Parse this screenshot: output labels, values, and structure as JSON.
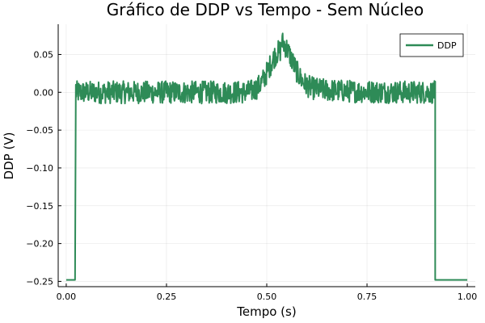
{
  "chart_data": {
    "type": "line",
    "title": "Gráfico de DDP vs Tempo - Sem Núcleo",
    "xlabel": "Tempo (s)",
    "ylabel": "DDP (V)",
    "xlim": [
      -0.02,
      1.02
    ],
    "ylim": [
      -0.257,
      0.09
    ],
    "xticks": [
      0.0,
      0.25,
      0.5,
      0.75,
      1.0
    ],
    "xtick_labels": [
      "0.00",
      "0.25",
      "0.50",
      "0.75",
      "1.00"
    ],
    "yticks": [
      0.05,
      0.0,
      -0.05,
      -0.1,
      -0.15,
      -0.2,
      -0.25
    ],
    "ytick_labels": [
      "0.05",
      "0.00",
      "−0.05",
      "−0.10",
      "−0.15",
      "−0.20",
      "−0.25"
    ],
    "grid": true,
    "legend_position": "top-right",
    "colors": {
      "series": "#2E8B57"
    },
    "series": [
      {
        "name": "DDP",
        "description_points": {
          "baseline_before": [
            [
              0.0,
              -0.248
            ],
            [
              0.022,
              -0.248
            ]
          ],
          "jump_up": [
            [
              0.024,
              0.0
            ]
          ],
          "noisy_plateau_start_end": [
            [
              0.024,
              0.92
            ]
          ],
          "peak_near": [
            [
              0.53,
              0.065
            ]
          ],
          "drop_down": [
            [
              0.92,
              -0.248
            ]
          ],
          "baseline_after": [
            [
              0.922,
              -0.248
            ],
            [
              1.0,
              -0.248
            ]
          ]
        },
        "noise_amplitude": 0.015
      }
    ]
  }
}
